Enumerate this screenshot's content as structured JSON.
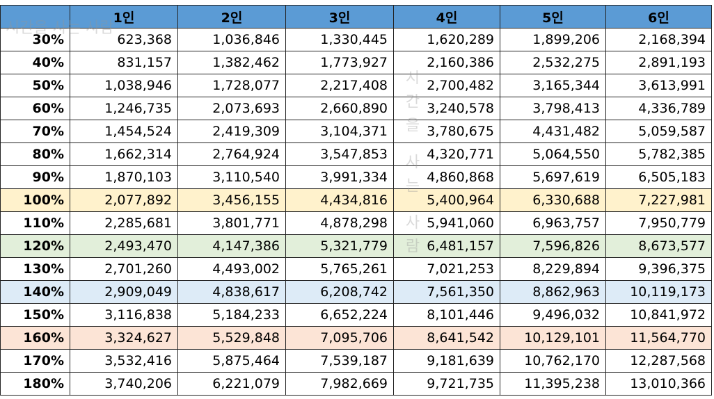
{
  "watermark": "시간을 사는 사람",
  "table": {
    "header": [
      "1인",
      "2인",
      "3인",
      "4인",
      "5인",
      "6인"
    ],
    "header_color": "#5b9bd5",
    "rows": [
      {
        "label": "30%",
        "values": [
          "623,368",
          "1,036,846",
          "1,330,445",
          "1,620,289",
          "1,899,206",
          "2,168,394"
        ]
      },
      {
        "label": "40%",
        "values": [
          "831,157",
          "1,382,462",
          "1,773,927",
          "2,160,386",
          "2,532,275",
          "2,891,193"
        ]
      },
      {
        "label": "50%",
        "values": [
          "1,038,946",
          "1,728,077",
          "2,217,408",
          "2,700,482",
          "3,165,344",
          "3,613,991"
        ]
      },
      {
        "label": "60%",
        "values": [
          "1,246,735",
          "2,073,693",
          "2,660,890",
          "3,240,578",
          "3,798,413",
          "4,336,789"
        ]
      },
      {
        "label": "70%",
        "values": [
          "1,454,524",
          "2,419,309",
          "3,104,371",
          "3,780,675",
          "4,431,482",
          "5,059,587"
        ]
      },
      {
        "label": "80%",
        "values": [
          "1,662,314",
          "2,764,924",
          "3,547,853",
          "4,320,771",
          "5,064,550",
          "5,782,385"
        ]
      },
      {
        "label": "90%",
        "values": [
          "1,870,103",
          "3,110,540",
          "3,991,334",
          "4,860,868",
          "5,697,619",
          "6,505,183"
        ]
      },
      {
        "label": "100%",
        "values": [
          "2,077,892",
          "3,456,155",
          "4,434,816",
          "5,400,964",
          "6,330,688",
          "7,227,981"
        ],
        "highlight": "#fff2cc"
      },
      {
        "label": "110%",
        "values": [
          "2,285,681",
          "3,801,771",
          "4,878,298",
          "5,941,060",
          "6,963,757",
          "7,950,779"
        ]
      },
      {
        "label": "120%",
        "values": [
          "2,493,470",
          "4,147,386",
          "5,321,779",
          "6,481,157",
          "7,596,826",
          "8,673,577"
        ],
        "highlight": "#e2efda"
      },
      {
        "label": "130%",
        "values": [
          "2,701,260",
          "4,493,002",
          "5,765,261",
          "7,021,253",
          "8,229,894",
          "9,396,375"
        ]
      },
      {
        "label": "140%",
        "values": [
          "2,909,049",
          "4,838,617",
          "6,208,742",
          "7,561,350",
          "8,862,963",
          "10,119,173"
        ],
        "highlight": "#ddebf7"
      },
      {
        "label": "150%",
        "values": [
          "3,116,838",
          "5,184,233",
          "6,652,224",
          "8,101,446",
          "9,496,032",
          "10,841,972"
        ]
      },
      {
        "label": "160%",
        "values": [
          "3,324,627",
          "5,529,848",
          "7,095,706",
          "8,641,542",
          "10,129,101",
          "11,564,770"
        ],
        "highlight": "#fce4d6"
      },
      {
        "label": "170%",
        "values": [
          "3,532,416",
          "5,875,464",
          "7,539,187",
          "9,181,639",
          "10,762,170",
          "12,287,568"
        ]
      },
      {
        "label": "180%",
        "values": [
          "3,740,206",
          "6,221,079",
          "7,982,669",
          "9,721,735",
          "11,395,238",
          "13,010,366"
        ]
      }
    ]
  }
}
